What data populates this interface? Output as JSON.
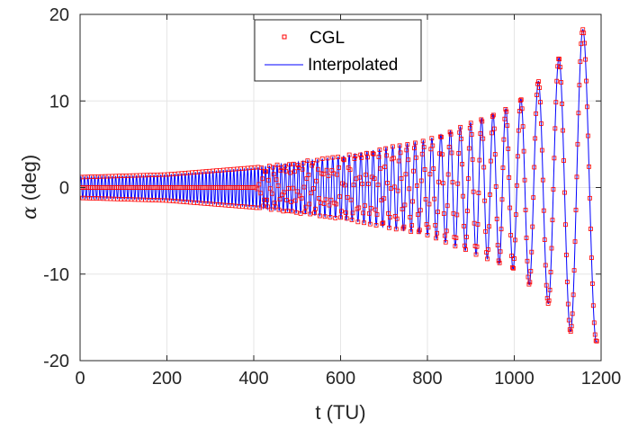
{
  "chart_data": {
    "type": "line",
    "xlabel": "t (TU)",
    "ylabel_symbol": "α",
    "ylabel_unit": " (deg)",
    "xlim": [
      0,
      1200
    ],
    "ylim": [
      -20,
      20
    ],
    "xticks": [
      0,
      200,
      400,
      600,
      800,
      1000,
      1200
    ],
    "yticks": [
      -20,
      -10,
      0,
      10,
      20
    ],
    "xtick_labels": [
      "0",
      "200",
      "400",
      "600",
      "800",
      "1000",
      "1200"
    ],
    "ytick_labels": [
      "-20",
      "-10",
      "0",
      "10",
      "20"
    ],
    "grid": true,
    "legend_position": "top-center",
    "series": [
      {
        "name": "CGL",
        "style": "markers",
        "marker": "square",
        "color": "#ff0000",
        "description": "growing oscillation sampled at collocation points"
      },
      {
        "name": "Interpolated",
        "style": "line",
        "color": "#0000ff"
      }
    ],
    "envelope": [
      {
        "t": 0,
        "amp": 1.2
      },
      {
        "t": 200,
        "amp": 1.5
      },
      {
        "t": 400,
        "amp": 2.3
      },
      {
        "t": 600,
        "amp": 3.6
      },
      {
        "t": 800,
        "amp": 5.5
      },
      {
        "t": 1000,
        "amp": 9.5
      },
      {
        "t": 1080,
        "amp": 13.5
      },
      {
        "t": 1155,
        "amp": 18.3
      },
      {
        "t": 1190,
        "amp": 17.8
      }
    ],
    "peaks": [
      {
        "t": 1020,
        "value": 10.5
      },
      {
        "t": 1047,
        "value": -10.3
      },
      {
        "t": 1080,
        "value": 13.5
      },
      {
        "t": 1108,
        "value": -13.0
      },
      {
        "t": 1155,
        "value": 18.3
      },
      {
        "t": 1185,
        "value": -17.7
      }
    ],
    "final_value": {
      "t": 1190,
      "value": -16.3
    }
  }
}
